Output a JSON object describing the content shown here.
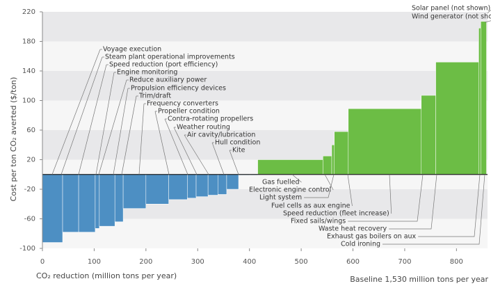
{
  "chart_data": {
    "type": "bar",
    "y_label": "Cost per ton CO₂ averted ($/ton)",
    "x_label": "CO₂ reduction (million tons per year)",
    "note": "Baseline 1,530 million tons per year",
    "widths": [
      39,
      31,
      32,
      8,
      30,
      16,
      44,
      44,
      36,
      17,
      23,
      19,
      17,
      23,
      22,
      15,
      126,
      17,
      5,
      27,
      141,
      28,
      83,
      4,
      11
    ],
    "values": [
      -92,
      -78,
      -78,
      -73,
      -70,
      -64,
      -46,
      -40,
      -34,
      -32,
      -30,
      -28,
      -27,
      -20,
      -1,
      -1,
      20,
      25,
      40,
      58,
      89,
      107,
      152,
      198,
      207
    ],
    "negative_color": "#4d8fc3",
    "positive_color": "#6cbd45",
    "xlim": [
      0,
      860
    ],
    "xticks": [
      0,
      100,
      200,
      300,
      400,
      500,
      600,
      700,
      800
    ],
    "ylim": [
      -100,
      220
    ],
    "yticks": [
      220,
      180,
      140,
      100,
      60,
      20,
      -20,
      -60,
      -100
    ],
    "upper_labels": [
      "Voyage execution",
      "Steam plant operational improvements",
      "Speed reduction (port efficiency)",
      "Engine monitoring",
      "Reduce auxiliary power",
      "Propulsion efficiency devices",
      "Trim/draft",
      "Frequency converters",
      "Propeller condition",
      "Contra-rotating propellers",
      "Weather routing",
      "Air cavity/lubrication",
      "Hull condition",
      "Kite"
    ],
    "lower_labels": [
      "Gas fuelled",
      "Electronic engine control",
      "Light system",
      "Fuel cells as aux engine",
      "Speed reduction (fleet increase)",
      "Fixed sails/wings",
      "Waste heat recovery",
      "Exhaust gas boilers on aux",
      "Cold ironing"
    ],
    "corner_labels": [
      "Solar panel (not shown)",
      "Wind generator (not shown)"
    ]
  }
}
